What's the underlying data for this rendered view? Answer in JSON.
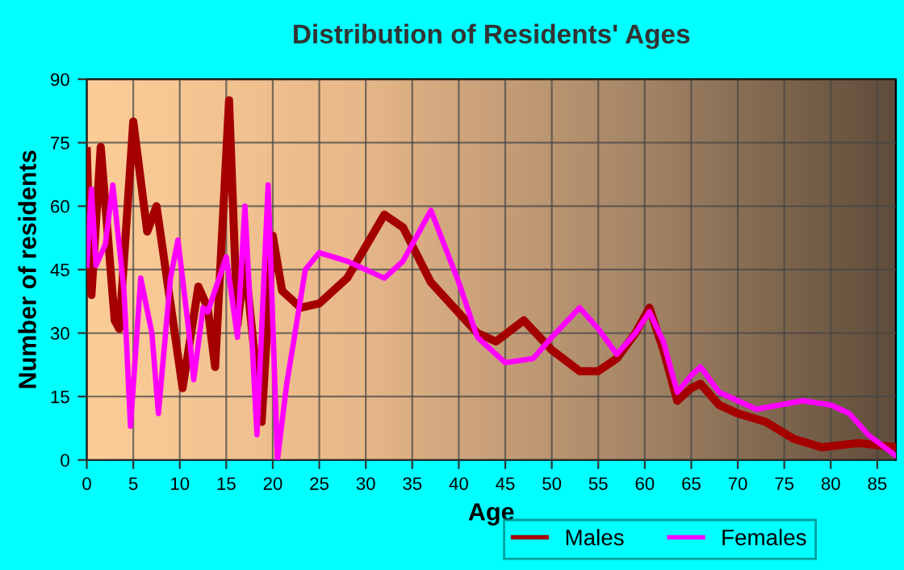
{
  "chart_data": {
    "type": "line",
    "title": "Distribution of Residents' Ages",
    "xlabel": "Age",
    "ylabel": "Number of residents",
    "xlim": [
      0,
      87
    ],
    "xticks": [
      0,
      5,
      10,
      15,
      20,
      25,
      30,
      35,
      40,
      45,
      50,
      55,
      60,
      65,
      70,
      75,
      80,
      85
    ],
    "ylim": [
      0,
      90
    ],
    "yticks": [
      0,
      15,
      30,
      45,
      60,
      75,
      90
    ],
    "grid": true,
    "legend": "bottom",
    "marker": "none",
    "line_style": "solid",
    "series": [
      {
        "name": "Males",
        "color": "#a50000",
        "x": [
          0,
          0.5,
          1.5,
          3,
          3.5,
          5,
          6.5,
          7.5,
          9,
          10.3,
          12,
          13,
          13.8,
          15.3,
          16.2,
          17,
          18.8,
          20,
          21,
          23,
          25,
          28,
          32,
          34,
          37,
          42,
          44,
          47,
          50,
          53,
          55,
          57,
          59,
          60.5,
          62,
          63.5,
          65,
          66,
          68,
          70,
          73,
          76,
          79,
          83,
          87
        ],
        "values": [
          73,
          39,
          74,
          33,
          31,
          80,
          54,
          60,
          37,
          17,
          41,
          36,
          22,
          85,
          32,
          47,
          9,
          53,
          40,
          36,
          37,
          43,
          58,
          55,
          42,
          30,
          28,
          33,
          26,
          21,
          21,
          24,
          30,
          36,
          26,
          14,
          17,
          18,
          13,
          11,
          9,
          5,
          3,
          4,
          3
        ]
      },
      {
        "name": "Females",
        "color": "#ff00ff",
        "x": [
          0,
          0.5,
          1,
          2,
          2.8,
          4,
          4.7,
          5.8,
          7,
          7.7,
          9,
          9.8,
          11,
          11.5,
          12.5,
          13,
          15,
          16.2,
          17,
          18.3,
          19.5,
          20.5,
          21.5,
          23.5,
          25,
          28,
          32,
          34,
          37,
          40,
          42,
          45,
          48,
          50,
          53,
          55,
          57,
          59,
          60.5,
          62,
          63.5,
          65,
          66,
          68,
          72,
          77,
          80,
          82,
          84,
          87
        ],
        "values": [
          46,
          64,
          46,
          51,
          65,
          40,
          8,
          43,
          30,
          11,
          43,
          52,
          30,
          19,
          36,
          35,
          48,
          29,
          60,
          6,
          65,
          0,
          18,
          45,
          49,
          47,
          43,
          47,
          59,
          42,
          29,
          23,
          24,
          29,
          36,
          31,
          25,
          30,
          35,
          28,
          16,
          20,
          22,
          16,
          12,
          14,
          13,
          11,
          6,
          1
        ]
      }
    ]
  }
}
